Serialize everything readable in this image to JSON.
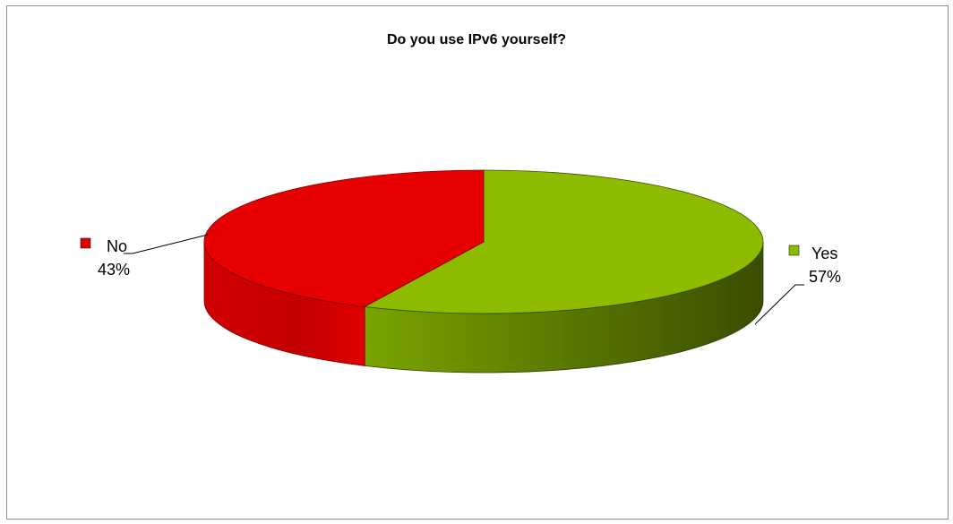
{
  "chart_data": {
    "type": "pie",
    "style": "3d",
    "title": "Do you use IPv6 yourself?",
    "categories": [
      "Yes",
      "No"
    ],
    "values": [
      57,
      43
    ],
    "labels": [
      {
        "name": "Yes",
        "percent_text": "57%"
      },
      {
        "name": "No",
        "percent_text": "43%"
      }
    ],
    "colors": {
      "Yes": "#8dbb00",
      "No": "#e60000"
    },
    "legend": "none",
    "grid": false
  }
}
